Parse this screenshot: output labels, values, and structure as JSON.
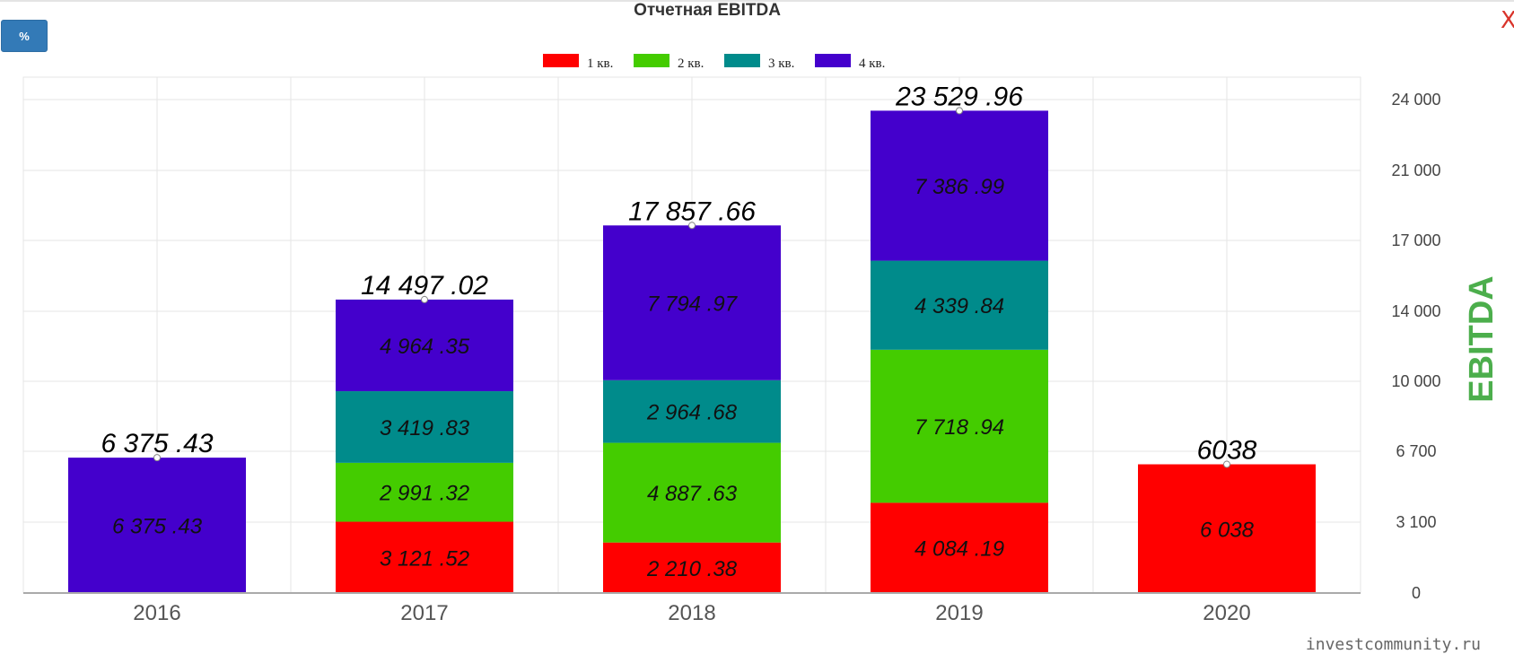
{
  "toolbar": {
    "percent_label": "%",
    "close_label": "X"
  },
  "watermark": "investcommunity.ru",
  "chart_data": {
    "type": "bar",
    "stacked": true,
    "title": "Отчетная EBITDA",
    "ylabel": "EBITDA",
    "y_axis_position": "right",
    "ylim": [
      0,
      24000
    ],
    "yticks": [
      0,
      3100,
      6700,
      10000,
      14000,
      17000,
      21000,
      24000
    ],
    "ytick_labels": [
      "0",
      "3 100",
      "6 700",
      "10 000",
      "14 000",
      "17 000",
      "21 000",
      "24 000"
    ],
    "grid": true,
    "legend_position": "top-center",
    "categories": [
      "2016",
      "2017",
      "2018",
      "2019",
      "2020"
    ],
    "series": [
      {
        "name": "1 кв.",
        "color": "#ff0000",
        "values": [
          null,
          3121.52,
          2210.38,
          4084.19,
          6038
        ],
        "labels": [
          "",
          "3 121 .52",
          "2 210 .38",
          "4 084 .19",
          "6 038"
        ]
      },
      {
        "name": "2 кв.",
        "color": "#44cc00",
        "values": [
          null,
          2991.32,
          4887.63,
          7718.94,
          null
        ],
        "labels": [
          "",
          "2 991 .32",
          "4 887 .63",
          "7 718 .94",
          ""
        ]
      },
      {
        "name": "3 кв.",
        "color": "#008b8b",
        "values": [
          null,
          3419.83,
          2964.68,
          4339.84,
          null
        ],
        "labels": [
          "",
          "3 419 .83",
          "2 964 .68",
          "4 339 .84",
          ""
        ]
      },
      {
        "name": "4 кв.",
        "color": "#4400cc",
        "values": [
          6375.43,
          4964.35,
          7794.97,
          7386.99,
          null
        ],
        "labels": [
          "6 375 .43",
          "4 964 .35",
          "7 794 .97",
          "7 386 .99",
          ""
        ]
      }
    ],
    "totals": [
      6375.43,
      14497.02,
      17857.66,
      23529.96,
      6038
    ],
    "total_labels": [
      "6 375 .43",
      "14 497 .02",
      "17 857 .66",
      "23 529 .96",
      "6038"
    ]
  }
}
